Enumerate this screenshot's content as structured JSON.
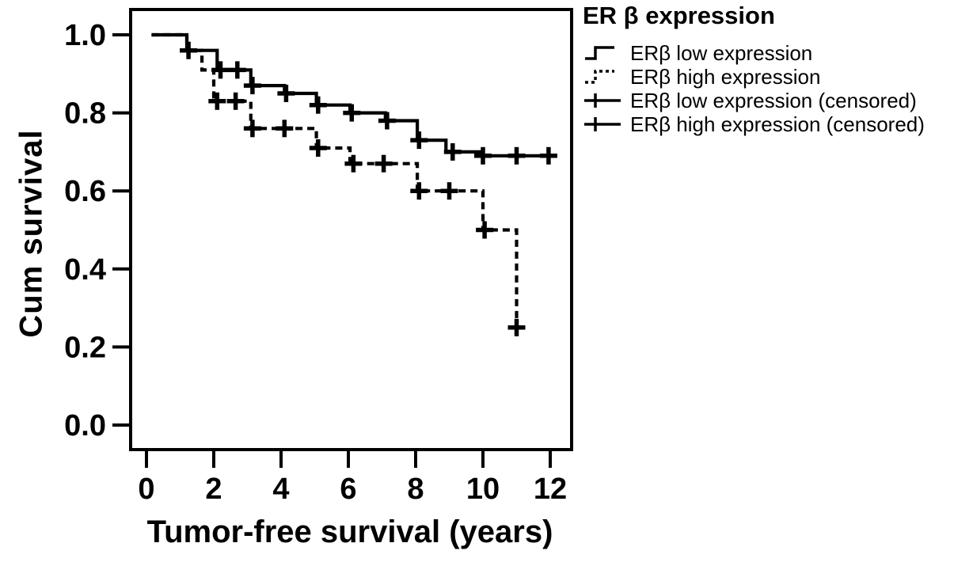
{
  "figure": {
    "background": "#ffffff",
    "line_color": "#000000"
  },
  "legend": {
    "title": "ER β expression",
    "items": [
      {
        "label": "ERβ  low expression",
        "symbol": "solid-step-line"
      },
      {
        "label": "ERβ  high expression",
        "symbol": "dashed-step-line"
      },
      {
        "label": "ERβ  low expression (censored)",
        "symbol": "plus-on-line"
      },
      {
        "label": "ERβ  high expression (censored)",
        "symbol": "plus-on-line"
      }
    ]
  },
  "chart_data": {
    "type": "line",
    "subtype": "kaplan-meier-step",
    "title": "",
    "xlabel": "Tumor-free survival (years)",
    "ylabel": "Cum survival",
    "xticks": [
      0,
      2,
      4,
      6,
      8,
      10,
      12
    ],
    "yticks": [
      0.0,
      0.2,
      0.4,
      0.6,
      0.8,
      1.0
    ],
    "xlim": [
      -0.5,
      12.7
    ],
    "ylim": [
      0.0,
      1.05
    ],
    "grid": false,
    "legend_position": "outside-top-right",
    "series": [
      {
        "name": "ERβ low expression",
        "style": "solid",
        "color": "#000000",
        "steps": [
          [
            0.15,
            1.0
          ],
          [
            1.2,
            0.96
          ],
          [
            2.1,
            0.91
          ],
          [
            3.1,
            0.87
          ],
          [
            4.1,
            0.85
          ],
          [
            5.05,
            0.82
          ],
          [
            6.05,
            0.8
          ],
          [
            7.1,
            0.78
          ],
          [
            8.05,
            0.73
          ],
          [
            8.9,
            0.7
          ],
          [
            9.95,
            0.69
          ],
          [
            12.2,
            0.69
          ]
        ],
        "censored": [
          [
            1.25,
            0.96
          ],
          [
            2.2,
            0.91
          ],
          [
            2.7,
            0.91
          ],
          [
            3.15,
            0.87
          ],
          [
            4.15,
            0.85
          ],
          [
            5.1,
            0.82
          ],
          [
            6.1,
            0.8
          ],
          [
            7.15,
            0.78
          ],
          [
            8.1,
            0.73
          ],
          [
            9.1,
            0.7
          ],
          [
            10.0,
            0.69
          ],
          [
            11.0,
            0.69
          ],
          [
            11.95,
            0.69
          ]
        ]
      },
      {
        "name": "ERβ high expression",
        "style": "dashed",
        "color": "#000000",
        "steps": [
          [
            0.15,
            1.0
          ],
          [
            1.2,
            0.96
          ],
          [
            1.65,
            0.91
          ],
          [
            2.0,
            0.83
          ],
          [
            3.1,
            0.76
          ],
          [
            5.05,
            0.71
          ],
          [
            6.05,
            0.67
          ],
          [
            8.05,
            0.6
          ],
          [
            10.0,
            0.5
          ],
          [
            11.0,
            0.26
          ]
        ],
        "censored": [
          [
            2.1,
            0.83
          ],
          [
            2.65,
            0.83
          ],
          [
            3.15,
            0.76
          ],
          [
            4.1,
            0.76
          ],
          [
            5.1,
            0.71
          ],
          [
            6.15,
            0.67
          ],
          [
            7.05,
            0.67
          ],
          [
            8.1,
            0.6
          ],
          [
            9.0,
            0.6
          ],
          [
            10.05,
            0.5
          ],
          [
            11.0,
            0.25
          ]
        ]
      }
    ]
  }
}
